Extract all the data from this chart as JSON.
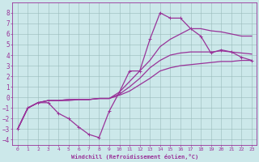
{
  "xlabel": "Windchill (Refroidissement éolien,°C)",
  "bg_color": "#cce8ea",
  "grid_color": "#99bbbb",
  "line_color": "#993399",
  "xlim": [
    -0.5,
    23.5
  ],
  "ylim": [
    -4.5,
    9.0
  ],
  "xticks": [
    0,
    1,
    2,
    3,
    4,
    5,
    6,
    7,
    8,
    9,
    10,
    11,
    12,
    13,
    14,
    15,
    16,
    17,
    18,
    19,
    20,
    21,
    22,
    23
  ],
  "yticks": [
    -4,
    -3,
    -2,
    -1,
    0,
    1,
    2,
    3,
    4,
    5,
    6,
    7,
    8
  ],
  "lines": [
    {
      "x": [
        0,
        1,
        2,
        3,
        4,
        5,
        6,
        7,
        8,
        9,
        10,
        11,
        12,
        13,
        14,
        15,
        16,
        17,
        18,
        19,
        20,
        21,
        22,
        23
      ],
      "y": [
        -3.0,
        -1.0,
        -0.5,
        -0.5,
        -1.5,
        -2.0,
        -2.8,
        -3.5,
        -3.8,
        -1.3,
        0.5,
        2.5,
        2.5,
        5.5,
        8.0,
        7.5,
        7.5,
        6.5,
        5.8,
        4.2,
        4.5,
        4.3,
        3.8,
        3.5
      ],
      "marker": "+",
      "lw": 0.9
    },
    {
      "x": [
        0,
        1,
        2,
        3,
        4,
        5,
        6,
        7,
        8,
        9,
        10,
        11,
        12,
        13,
        14,
        15,
        16,
        17,
        18,
        19,
        20,
        21,
        22,
        23
      ],
      "y": [
        -3.0,
        -1.0,
        -0.5,
        -0.3,
        -0.3,
        -0.3,
        -0.2,
        -0.2,
        -0.1,
        -0.1,
        0.5,
        1.5,
        2.5,
        3.5,
        4.8,
        5.5,
        6.0,
        6.5,
        6.5,
        6.3,
        6.2,
        6.0,
        5.8,
        5.8
      ],
      "marker": null,
      "lw": 0.9
    },
    {
      "x": [
        0,
        1,
        2,
        3,
        4,
        5,
        6,
        7,
        8,
        9,
        10,
        11,
        12,
        13,
        14,
        15,
        16,
        17,
        18,
        19,
        20,
        21,
        22,
        23
      ],
      "y": [
        -3.0,
        -1.0,
        -0.5,
        -0.3,
        -0.3,
        -0.2,
        -0.2,
        -0.2,
        -0.1,
        -0.1,
        0.3,
        1.0,
        1.8,
        2.8,
        3.5,
        4.0,
        4.2,
        4.3,
        4.3,
        4.3,
        4.4,
        4.3,
        4.2,
        4.1
      ],
      "marker": null,
      "lw": 0.9
    },
    {
      "x": [
        0,
        1,
        2,
        3,
        4,
        5,
        6,
        7,
        8,
        9,
        10,
        11,
        12,
        13,
        14,
        15,
        16,
        17,
        18,
        19,
        20,
        21,
        22,
        23
      ],
      "y": [
        -3.0,
        -1.0,
        -0.5,
        -0.3,
        -0.3,
        -0.2,
        -0.2,
        -0.2,
        -0.1,
        -0.1,
        0.2,
        0.6,
        1.2,
        1.8,
        2.5,
        2.8,
        3.0,
        3.1,
        3.2,
        3.3,
        3.4,
        3.4,
        3.5,
        3.5
      ],
      "marker": null,
      "lw": 0.9
    }
  ]
}
